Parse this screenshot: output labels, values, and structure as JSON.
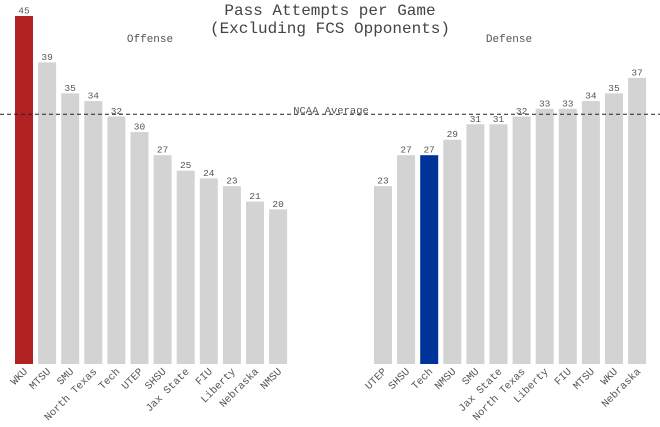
{
  "chart_data": {
    "type": "bar",
    "title_line1": "Pass Attempts per Game",
    "title_line2": "(Excluding FCS Opponents)",
    "reference_line": {
      "label": "NCAA Average",
      "value": 32.3
    },
    "ylim": [
      0,
      45
    ],
    "grid": false,
    "colors": {
      "default": "#d3d3d3",
      "highlight_red": "#b22222",
      "highlight_blue": "#003399",
      "text": "#555555",
      "title": "#444444",
      "line": "#222222"
    },
    "panels": [
      {
        "title": "Offense",
        "categories": [
          "WKU",
          "MTSU",
          "SMU",
          "North Texas",
          "Tech",
          "UTEP",
          "SHSU",
          "Jax State",
          "FIU",
          "Liberty",
          "Nebraska",
          "NMSU"
        ],
        "values": [
          45,
          39,
          35,
          34,
          32,
          30,
          27,
          25,
          24,
          23,
          21,
          20
        ],
        "highlight": {
          "WKU": "#b22222"
        }
      },
      {
        "title": "Defense",
        "categories": [
          "UTEP",
          "SHSU",
          "Tech",
          "NMSU",
          "SMU",
          "Jax State",
          "North Texas",
          "Liberty",
          "FIU",
          "MTSU",
          "WKU",
          "Nebraska"
        ],
        "values": [
          23,
          27,
          27,
          29,
          31,
          31,
          32,
          33,
          33,
          34,
          35,
          37
        ],
        "highlight": {
          "Tech": "#003399"
        }
      }
    ]
  }
}
